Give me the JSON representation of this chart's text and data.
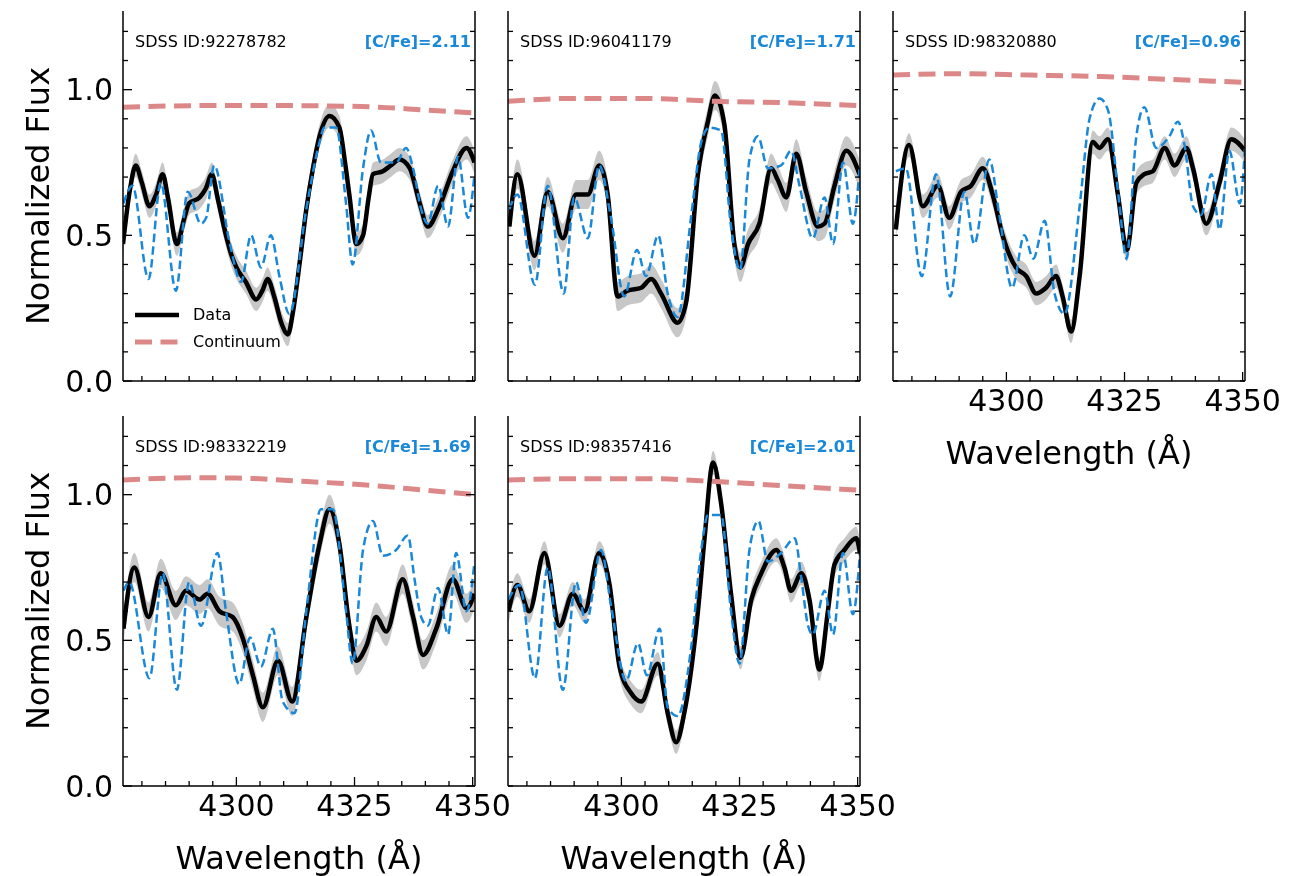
{
  "chart_data": [
    {
      "type": "line",
      "ylabel": "Normalized Flux",
      "annotations": [
        "SDSS ID:92278782",
        "[C/Fe]=2.11"
      ],
      "xlim": [
        4276,
        4350.5
      ],
      "ylim": [
        0,
        1.27
      ],
      "xticks": [
        {
          "value": 4280,
          "label": null
        },
        {
          "value": 4285,
          "label": null
        },
        {
          "value": 4290,
          "label": null
        },
        {
          "value": 4295,
          "label": null
        },
        {
          "value": 4300,
          "label": null
        },
        {
          "value": 4305,
          "label": null
        },
        {
          "value": 4310,
          "label": null
        },
        {
          "value": 4315,
          "label": null
        },
        {
          "value": 4320,
          "label": null
        },
        {
          "value": 4325,
          "label": null
        },
        {
          "value": 4330,
          "label": null
        },
        {
          "value": 4335,
          "label": null
        },
        {
          "value": 4340,
          "label": null
        },
        {
          "value": 4345,
          "label": null
        },
        {
          "value": 4350,
          "label": null
        }
      ],
      "yticks": [
        {
          "value": 0,
          "label": "0.0"
        },
        {
          "value": 0.1,
          "label": null
        },
        {
          "value": 0.2,
          "label": null
        },
        {
          "value": 0.3,
          "label": null
        },
        {
          "value": 0.4,
          "label": null
        },
        {
          "value": 0.5,
          "label": "0.5"
        },
        {
          "value": 0.6,
          "label": null
        },
        {
          "value": 0.7,
          "label": null
        },
        {
          "value": 0.8,
          "label": null
        },
        {
          "value": 0.9,
          "label": null
        },
        {
          "value": 1,
          "label": "1.0"
        },
        {
          "value": 1.1,
          "label": null
        },
        {
          "value": 1.2,
          "label": null
        }
      ],
      "tick_labels": "y",
      "legend": "bottom left",
      "series": [
        {
          "name": "Data",
          "color": "#000000",
          "line_style": "solid",
          "x": [
            4276,
            4277.5,
            4278.7,
            4280,
            4281.6,
            4283,
            4284.4,
            4285.5,
            4287.4,
            4289,
            4290,
            4292.2,
            4293.5,
            4294.8,
            4296,
            4297.8,
            4299,
            4300,
            4302,
            4304.2,
            4305.5,
            4306.6,
            4308,
            4309.5,
            4310.9,
            4312,
            4313.5,
            4314.8,
            4316.2,
            4317.6,
            4319.7,
            4321.8,
            4323,
            4323.9,
            4325.4,
            4326.8,
            4328,
            4328.9,
            4331,
            4332.7,
            4334.5,
            4336.7,
            4338.8,
            4340.5,
            4343,
            4345.8,
            4348.7,
            4350.4
          ],
          "values": [
            0.47,
            0.66,
            0.74,
            0.68,
            0.6,
            0.64,
            0.71,
            0.63,
            0.47,
            0.56,
            0.61,
            0.63,
            0.66,
            0.71,
            0.63,
            0.5,
            0.43,
            0.39,
            0.34,
            0.28,
            0.31,
            0.35,
            0.29,
            0.2,
            0.16,
            0.24,
            0.42,
            0.59,
            0.73,
            0.84,
            0.91,
            0.87,
            0.75,
            0.64,
            0.47,
            0.5,
            0.63,
            0.71,
            0.72,
            0.74,
            0.76,
            0.73,
            0.61,
            0.53,
            0.6,
            0.72,
            0.8,
            0.75
          ],
          "lower": [
            0.43,
            0.62,
            0.7,
            0.64,
            0.56,
            0.6,
            0.67,
            0.59,
            0.43,
            0.52,
            0.57,
            0.59,
            0.62,
            0.67,
            0.59,
            0.46,
            0.39,
            0.35,
            0.3,
            0.24,
            0.27,
            0.31,
            0.25,
            0.16,
            0.12,
            0.2,
            0.38,
            0.55,
            0.69,
            0.8,
            0.87,
            0.83,
            0.71,
            0.6,
            0.43,
            0.46,
            0.59,
            0.67,
            0.68,
            0.7,
            0.72,
            0.69,
            0.57,
            0.49,
            0.56,
            0.68,
            0.76,
            0.71
          ],
          "upper": [
            0.51,
            0.7,
            0.78,
            0.72,
            0.64,
            0.68,
            0.75,
            0.67,
            0.51,
            0.6,
            0.65,
            0.67,
            0.7,
            0.75,
            0.67,
            0.54,
            0.47,
            0.43,
            0.38,
            0.32,
            0.35,
            0.39,
            0.33,
            0.24,
            0.2,
            0.28,
            0.46,
            0.63,
            0.77,
            0.88,
            0.95,
            0.91,
            0.79,
            0.68,
            0.51,
            0.54,
            0.67,
            0.75,
            0.76,
            0.78,
            0.8,
            0.77,
            0.65,
            0.57,
            0.64,
            0.76,
            0.84,
            0.79
          ]
        },
        {
          "name": "Continuum",
          "color": "#dd8888",
          "line_style": "dashed",
          "x": [
            4276,
            4290,
            4300,
            4315,
            4330,
            4340,
            4350.5
          ],
          "values": [
            0.94,
            0.945,
            0.946,
            0.945,
            0.94,
            0.93,
            0.92
          ]
        },
        {
          "color": "#1a88d8",
          "line_style": "dashed",
          "x": [
            4276.1,
            4278,
            4281.4,
            4284,
            4287.2,
            4289.7,
            4292.5,
            4293.6,
            4295.3,
            4298.5,
            4301,
            4303.1,
            4305.2,
            4307.3,
            4309.1,
            4311.2,
            4314.8,
            4317.6,
            4318.6,
            4321.1,
            4323.2,
            4324.6,
            4326.8,
            4328.5,
            4330.6,
            4333.8,
            4335.9,
            4337.4,
            4339.1,
            4340.5,
            4342.7,
            4344.8,
            4346.9,
            4349,
            4350.4
          ],
          "values": [
            0.61,
            0.67,
            0.35,
            0.68,
            0.31,
            0.65,
            0.54,
            0.56,
            0.74,
            0.48,
            0.34,
            0.5,
            0.39,
            0.5,
            0.36,
            0.23,
            0.59,
            0.82,
            0.87,
            0.87,
            0.61,
            0.4,
            0.73,
            0.86,
            0.75,
            0.75,
            0.8,
            0.73,
            0.59,
            0.54,
            0.67,
            0.53,
            0.77,
            0.56,
            0.71
          ]
        }
      ]
    },
    {
      "type": "line",
      "annotations": [
        "SDSS ID:96041179",
        "[C/Fe]=1.71"
      ],
      "xlim": [
        4276,
        4350.5
      ],
      "ylim": [
        0,
        1.27
      ],
      "xticks": [
        {
          "value": 4280,
          "label": null
        },
        {
          "value": 4285,
          "label": null
        },
        {
          "value": 4290,
          "label": null
        },
        {
          "value": 4295,
          "label": null
        },
        {
          "value": 4300,
          "label": null
        },
        {
          "value": 4305,
          "label": null
        },
        {
          "value": 4310,
          "label": null
        },
        {
          "value": 4315,
          "label": null
        },
        {
          "value": 4320,
          "label": null
        },
        {
          "value": 4325,
          "label": null
        },
        {
          "value": 4330,
          "label": null
        },
        {
          "value": 4335,
          "label": null
        },
        {
          "value": 4340,
          "label": null
        },
        {
          "value": 4345,
          "label": null
        },
        {
          "value": 4350,
          "label": null
        }
      ],
      "yticks": [
        {
          "value": 0,
          "label": null
        },
        {
          "value": 0.1,
          "label": null
        },
        {
          "value": 0.2,
          "label": null
        },
        {
          "value": 0.3,
          "label": null
        },
        {
          "value": 0.4,
          "label": null
        },
        {
          "value": 0.5,
          "label": null
        },
        {
          "value": 0.6,
          "label": null
        },
        {
          "value": 0.7,
          "label": null
        },
        {
          "value": 0.8,
          "label": null
        },
        {
          "value": 0.9,
          "label": null
        },
        {
          "value": 1,
          "label": null
        },
        {
          "value": 1.1,
          "label": null
        },
        {
          "value": 1.2,
          "label": null
        }
      ],
      "tick_labels": false,
      "series": [
        {
          "color": "#000000",
          "line_style": "solid",
          "x": [
            4276.3,
            4278,
            4281.6,
            4284.4,
            4287.6,
            4290.4,
            4292.9,
            4295.3,
            4297.1,
            4299.2,
            4301.3,
            4304.2,
            4306.3,
            4308.4,
            4311.9,
            4313.7,
            4316.2,
            4318.3,
            4319.8,
            4321.8,
            4323.9,
            4325.2,
            4326.8,
            4329.2,
            4331.7,
            4333.1,
            4334.9,
            4337,
            4339.1,
            4341.6,
            4343,
            4345.1,
            4347.6,
            4350.4
          ],
          "values": [
            0.53,
            0.71,
            0.43,
            0.65,
            0.49,
            0.64,
            0.64,
            0.74,
            0.64,
            0.29,
            0.31,
            0.32,
            0.35,
            0.3,
            0.2,
            0.27,
            0.71,
            0.89,
            0.98,
            0.88,
            0.47,
            0.39,
            0.47,
            0.54,
            0.73,
            0.69,
            0.63,
            0.78,
            0.65,
            0.53,
            0.54,
            0.67,
            0.79,
            0.71
          ],
          "lower": [
            0.48,
            0.66,
            0.38,
            0.6,
            0.44,
            0.59,
            0.59,
            0.69,
            0.59,
            0.24,
            0.26,
            0.27,
            0.3,
            0.25,
            0.15,
            0.22,
            0.66,
            0.84,
            0.93,
            0.83,
            0.42,
            0.34,
            0.42,
            0.49,
            0.68,
            0.64,
            0.58,
            0.73,
            0.6,
            0.48,
            0.49,
            0.62,
            0.74,
            0.66
          ],
          "upper": [
            0.58,
            0.76,
            0.48,
            0.7,
            0.54,
            0.69,
            0.69,
            0.79,
            0.69,
            0.34,
            0.36,
            0.37,
            0.4,
            0.35,
            0.25,
            0.32,
            0.76,
            0.94,
            1.03,
            0.93,
            0.52,
            0.44,
            0.52,
            0.59,
            0.78,
            0.74,
            0.68,
            0.83,
            0.7,
            0.58,
            0.59,
            0.72,
            0.84,
            0.76
          ]
        },
        {
          "color": "#dd8888",
          "line_style": "dashed",
          "x": [
            4276,
            4290,
            4305,
            4320,
            4335,
            4350.5
          ],
          "values": [
            0.96,
            0.97,
            0.97,
            0.96,
            0.955,
            0.945
          ]
        },
        {
          "color": "#1a88d8",
          "line_style": "dashed",
          "x": [
            4276.3,
            4278,
            4281.7,
            4284.4,
            4287.8,
            4290,
            4292.9,
            4295.3,
            4297.8,
            4300.6,
            4303.3,
            4305.2,
            4307.8,
            4309.8,
            4311.9,
            4314.8,
            4316.9,
            4318.6,
            4321.1,
            4323.2,
            4325.1,
            4327.1,
            4328.9,
            4331,
            4333.8,
            4335.9,
            4337.7,
            4340.5,
            4343,
            4344.8,
            4346.9,
            4349,
            4350.4
          ],
          "values": [
            0.59,
            0.64,
            0.33,
            0.67,
            0.3,
            0.63,
            0.49,
            0.74,
            0.56,
            0.29,
            0.45,
            0.36,
            0.5,
            0.3,
            0.22,
            0.57,
            0.82,
            0.87,
            0.86,
            0.53,
            0.38,
            0.76,
            0.84,
            0.73,
            0.74,
            0.79,
            0.67,
            0.49,
            0.63,
            0.47,
            0.75,
            0.54,
            0.73
          ]
        }
      ]
    },
    {
      "type": "line",
      "xlabel": "Wavelength (Å)",
      "annotations": [
        "SDSS ID:98320880",
        "[C/Fe]=0.96"
      ],
      "xlim": [
        4276,
        4350.5
      ],
      "ylim": [
        0,
        1.27
      ],
      "xticks": [
        {
          "value": 4280,
          "label": null
        },
        {
          "value": 4285,
          "label": null
        },
        {
          "value": 4290,
          "label": null
        },
        {
          "value": 4295,
          "label": null
        },
        4300,
        {
          "value": 4305,
          "label": null
        },
        {
          "value": 4310,
          "label": null
        },
        {
          "value": 4315,
          "label": null
        },
        {
          "value": 4320,
          "label": null
        },
        4325,
        {
          "value": 4330,
          "label": null
        },
        {
          "value": 4335,
          "label": null
        },
        {
          "value": 4340,
          "label": null
        },
        {
          "value": 4345,
          "label": null
        },
        4350
      ],
      "yticks": [
        {
          "value": 0,
          "label": null
        },
        {
          "value": 0.1,
          "label": null
        },
        {
          "value": 0.2,
          "label": null
        },
        {
          "value": 0.3,
          "label": null
        },
        {
          "value": 0.4,
          "label": null
        },
        {
          "value": 0.5,
          "label": null
        },
        {
          "value": 0.6,
          "label": null
        },
        {
          "value": 0.7,
          "label": null
        },
        {
          "value": 0.8,
          "label": null
        },
        {
          "value": 0.9,
          "label": null
        },
        {
          "value": 1,
          "label": null
        },
        {
          "value": 1.1,
          "label": null
        },
        {
          "value": 1.2,
          "label": null
        }
      ],
      "tick_labels": "x",
      "series": [
        {
          "color": "#000000",
          "line_style": "solid",
          "x": [
            4276.6,
            4279.4,
            4282.3,
            4285.5,
            4287.9,
            4290.4,
            4292.5,
            4295,
            4297.1,
            4299.2,
            4302,
            4304.2,
            4306.3,
            4308.4,
            4310.5,
            4311.9,
            4313.7,
            4315.5,
            4318.3,
            4319.7,
            4321.5,
            4323.6,
            4325.5,
            4327.5,
            4329.2,
            4331,
            4333.5,
            4335.6,
            4338.1,
            4339.5,
            4342.3,
            4345.1,
            4347.6,
            4350.5
          ],
          "values": [
            0.52,
            0.81,
            0.6,
            0.67,
            0.56,
            0.65,
            0.67,
            0.73,
            0.64,
            0.5,
            0.39,
            0.36,
            0.3,
            0.32,
            0.36,
            0.29,
            0.17,
            0.36,
            0.82,
            0.8,
            0.83,
            0.64,
            0.45,
            0.68,
            0.71,
            0.72,
            0.8,
            0.74,
            0.8,
            0.73,
            0.54,
            0.68,
            0.83,
            0.79
          ],
          "lower": [
            0.48,
            0.77,
            0.56,
            0.63,
            0.52,
            0.61,
            0.63,
            0.69,
            0.6,
            0.46,
            0.35,
            0.32,
            0.26,
            0.28,
            0.32,
            0.25,
            0.13,
            0.32,
            0.78,
            0.76,
            0.79,
            0.6,
            0.41,
            0.64,
            0.67,
            0.68,
            0.76,
            0.7,
            0.76,
            0.69,
            0.5,
            0.64,
            0.79,
            0.75
          ],
          "upper": [
            0.56,
            0.85,
            0.64,
            0.71,
            0.6,
            0.69,
            0.71,
            0.77,
            0.68,
            0.54,
            0.43,
            0.4,
            0.34,
            0.36,
            0.4,
            0.33,
            0.21,
            0.4,
            0.86,
            0.84,
            0.87,
            0.68,
            0.49,
            0.72,
            0.75,
            0.76,
            0.84,
            0.78,
            0.84,
            0.77,
            0.58,
            0.72,
            0.87,
            0.83
          ]
        },
        {
          "color": "#dd8888",
          "line_style": "dashed",
          "x": [
            4276,
            4290,
            4305,
            4320,
            4335,
            4350.5
          ],
          "values": [
            1.05,
            1.055,
            1.05,
            1.045,
            1.035,
            1.025
          ]
        },
        {
          "color": "#1a88d8",
          "line_style": "dashed",
          "x": [
            4276.6,
            4278.7,
            4282.1,
            4285.1,
            4288.1,
            4291.1,
            4293.2,
            4296.4,
            4298.5,
            4301.2,
            4303.8,
            4305.7,
            4308.1,
            4310.2,
            4312.3,
            4315.5,
            4317.6,
            4319.7,
            4321.5,
            4323.9,
            4325.4,
            4327.5,
            4329.2,
            4331.7,
            4334.5,
            4336.3,
            4337.7,
            4339.5,
            4341.2,
            4343.4,
            4345.1,
            4347.2,
            4349.4,
            4350.5
          ],
          "values": [
            0.72,
            0.73,
            0.36,
            0.71,
            0.29,
            0.65,
            0.47,
            0.76,
            0.57,
            0.32,
            0.5,
            0.42,
            0.55,
            0.3,
            0.23,
            0.6,
            0.9,
            0.97,
            0.93,
            0.61,
            0.42,
            0.84,
            0.94,
            0.8,
            0.84,
            0.89,
            0.81,
            0.6,
            0.57,
            0.71,
            0.52,
            0.79,
            0.61,
            0.8
          ]
        }
      ]
    },
    {
      "type": "line",
      "xlabel": "Wavelength (Å)",
      "ylabel": "Normalized Flux",
      "annotations": [
        "SDSS ID:98332219",
        "[C/Fe]=1.69"
      ],
      "xlim": [
        4276,
        4350.5
      ],
      "ylim": [
        0,
        1.27
      ],
      "xticks": [
        {
          "value": 4280,
          "label": null
        },
        {
          "value": 4285,
          "label": null
        },
        {
          "value": 4290,
          "label": null
        },
        {
          "value": 4295,
          "label": null
        },
        4300,
        {
          "value": 4305,
          "label": null
        },
        {
          "value": 4310,
          "label": null
        },
        {
          "value": 4315,
          "label": null
        },
        {
          "value": 4320,
          "label": null
        },
        4325,
        {
          "value": 4330,
          "label": null
        },
        {
          "value": 4335,
          "label": null
        },
        {
          "value": 4340,
          "label": null
        },
        {
          "value": 4345,
          "label": null
        },
        4350
      ],
      "yticks": [
        {
          "value": 0,
          "label": "0.0"
        },
        {
          "value": 0.1,
          "label": null
        },
        {
          "value": 0.2,
          "label": null
        },
        {
          "value": 0.3,
          "label": null
        },
        {
          "value": 0.4,
          "label": null
        },
        {
          "value": 0.5,
          "label": "0.5"
        },
        {
          "value": 0.6,
          "label": null
        },
        {
          "value": 0.7,
          "label": null
        },
        {
          "value": 0.8,
          "label": null
        },
        {
          "value": 0.9,
          "label": null
        },
        {
          "value": 1,
          "label": "1.0"
        },
        {
          "value": 1.1,
          "label": null
        },
        {
          "value": 1.2,
          "label": null
        }
      ],
      "series": [
        {
          "color": "#000000",
          "line_style": "solid",
          "x": [
            4276.1,
            4278.4,
            4281.4,
            4284,
            4287.2,
            4289.3,
            4292.2,
            4293.9,
            4296.4,
            4299.2,
            4301.3,
            4303.5,
            4305.6,
            4308.8,
            4311.8,
            4314.8,
            4317.6,
            4319.7,
            4321.8,
            4323.9,
            4325.4,
            4327.5,
            4329.6,
            4331.7,
            4335.2,
            4337.4,
            4339.5,
            4342.3,
            4345.8,
            4348.7,
            4350.4
          ],
          "values": [
            0.54,
            0.75,
            0.58,
            0.73,
            0.62,
            0.67,
            0.64,
            0.66,
            0.6,
            0.58,
            0.51,
            0.38,
            0.27,
            0.43,
            0.29,
            0.58,
            0.83,
            0.95,
            0.83,
            0.55,
            0.43,
            0.48,
            0.58,
            0.53,
            0.71,
            0.58,
            0.45,
            0.54,
            0.71,
            0.61,
            0.66
          ],
          "lower": [
            0.49,
            0.7,
            0.53,
            0.68,
            0.57,
            0.62,
            0.59,
            0.61,
            0.55,
            0.53,
            0.46,
            0.33,
            0.22,
            0.38,
            0.24,
            0.53,
            0.78,
            0.9,
            0.78,
            0.5,
            0.38,
            0.43,
            0.53,
            0.48,
            0.66,
            0.53,
            0.4,
            0.49,
            0.66,
            0.56,
            0.61
          ],
          "upper": [
            0.59,
            0.8,
            0.63,
            0.78,
            0.67,
            0.72,
            0.69,
            0.71,
            0.65,
            0.63,
            0.56,
            0.43,
            0.32,
            0.48,
            0.34,
            0.63,
            0.88,
            1.0,
            0.88,
            0.6,
            0.48,
            0.53,
            0.63,
            0.58,
            0.76,
            0.63,
            0.5,
            0.59,
            0.76,
            0.66,
            0.71
          ]
        },
        {
          "color": "#dd8888",
          "line_style": "dashed",
          "x": [
            4276,
            4290,
            4300,
            4315,
            4330,
            4340,
            4350.5
          ],
          "values": [
            1.05,
            1.058,
            1.057,
            1.045,
            1.03,
            1.015,
            1.0
          ]
        },
        {
          "color": "#1a88d8",
          "line_style": "dashed",
          "x": [
            4276.1,
            4277.3,
            4281.6,
            4284.4,
            4287.4,
            4290,
            4292.5,
            4296,
            4297.8,
            4300.6,
            4302.9,
            4305.2,
            4307.7,
            4309.8,
            4312.3,
            4314.8,
            4317.9,
            4320.4,
            4323.2,
            4324.6,
            4326.8,
            4328.9,
            4331,
            4333.8,
            4336.3,
            4337.7,
            4339.1,
            4340.5,
            4342.7,
            4344.8,
            4346.5,
            4348.7,
            4350.4
          ],
          "values": [
            0.67,
            0.7,
            0.37,
            0.73,
            0.33,
            0.7,
            0.55,
            0.8,
            0.6,
            0.35,
            0.51,
            0.41,
            0.54,
            0.29,
            0.25,
            0.6,
            0.95,
            0.95,
            0.6,
            0.42,
            0.81,
            0.91,
            0.79,
            0.81,
            0.86,
            0.71,
            0.58,
            0.55,
            0.68,
            0.52,
            0.8,
            0.6,
            0.77
          ]
        }
      ]
    },
    {
      "type": "line",
      "xlabel": "Wavelength (Å)",
      "annotations": [
        "SDSS ID:98357416",
        "[C/Fe]=2.01"
      ],
      "xlim": [
        4276,
        4350.5
      ],
      "ylim": [
        0,
        1.27
      ],
      "xticks": [
        {
          "value": 4280,
          "label": null
        },
        {
          "value": 4285,
          "label": null
        },
        {
          "value": 4290,
          "label": null
        },
        {
          "value": 4295,
          "label": null
        },
        4300,
        {
          "value": 4305,
          "label": null
        },
        {
          "value": 4310,
          "label": null
        },
        {
          "value": 4315,
          "label": null
        },
        {
          "value": 4320,
          "label": null
        },
        4325,
        {
          "value": 4330,
          "label": null
        },
        {
          "value": 4335,
          "label": null
        },
        {
          "value": 4340,
          "label": null
        },
        {
          "value": 4345,
          "label": null
        },
        4350
      ],
      "yticks": [
        {
          "value": 0,
          "label": null
        },
        {
          "value": 0.1,
          "label": null
        },
        {
          "value": 0.2,
          "label": null
        },
        {
          "value": 0.3,
          "label": null
        },
        {
          "value": 0.4,
          "label": null
        },
        {
          "value": 0.5,
          "label": null
        },
        {
          "value": 0.6,
          "label": null
        },
        {
          "value": 0.7,
          "label": null
        },
        {
          "value": 0.8,
          "label": null
        },
        {
          "value": 0.9,
          "label": null
        },
        {
          "value": 1,
          "label": null
        },
        {
          "value": 1.1,
          "label": null
        },
        {
          "value": 1.2,
          "label": null
        }
      ],
      "tick_labels": "x",
      "series": [
        {
          "color": "#000000",
          "line_style": "solid",
          "x": [
            4276.1,
            4278,
            4280.5,
            4283.7,
            4286.9,
            4289.7,
            4292.2,
            4295.3,
            4297.5,
            4299.6,
            4302,
            4304.2,
            4307.7,
            4309.8,
            4311.6,
            4313.3,
            4316.2,
            4317.6,
            4319.4,
            4321.1,
            4323.2,
            4325.2,
            4327.5,
            4329.6,
            4332.8,
            4334.5,
            4335.9,
            4338.1,
            4339.8,
            4341.9,
            4343.7,
            4345.1,
            4347.2,
            4349.7,
            4350.5
          ],
          "values": [
            0.6,
            0.69,
            0.6,
            0.8,
            0.55,
            0.66,
            0.6,
            0.8,
            0.69,
            0.41,
            0.32,
            0.29,
            0.42,
            0.25,
            0.15,
            0.25,
            0.6,
            0.85,
            1.11,
            0.97,
            0.66,
            0.44,
            0.64,
            0.73,
            0.81,
            0.75,
            0.67,
            0.73,
            0.64,
            0.4,
            0.6,
            0.76,
            0.81,
            0.85,
            0.8
          ],
          "lower": [
            0.56,
            0.65,
            0.56,
            0.76,
            0.51,
            0.62,
            0.56,
            0.76,
            0.65,
            0.37,
            0.28,
            0.25,
            0.38,
            0.21,
            0.11,
            0.21,
            0.56,
            0.81,
            1.07,
            0.93,
            0.62,
            0.4,
            0.6,
            0.69,
            0.77,
            0.71,
            0.63,
            0.69,
            0.6,
            0.36,
            0.56,
            0.72,
            0.77,
            0.81,
            0.76
          ],
          "upper": [
            0.64,
            0.73,
            0.64,
            0.84,
            0.59,
            0.7,
            0.64,
            0.84,
            0.73,
            0.45,
            0.36,
            0.33,
            0.46,
            0.29,
            0.19,
            0.29,
            0.64,
            0.89,
            1.15,
            1.01,
            0.7,
            0.48,
            0.68,
            0.77,
            0.85,
            0.79,
            0.71,
            0.77,
            0.68,
            0.44,
            0.64,
            0.8,
            0.85,
            0.89,
            0.84
          ]
        },
        {
          "color": "#dd8888",
          "line_style": "dashed",
          "x": [
            4276,
            4290,
            4305,
            4320,
            4335,
            4350.5
          ],
          "values": [
            1.05,
            1.055,
            1.055,
            1.045,
            1.03,
            1.015
          ]
        },
        {
          "color": "#1a88d8",
          "line_style": "dashed",
          "x": [
            4276.1,
            4278.4,
            4281.7,
            4284.4,
            4287.6,
            4290.4,
            4292.5,
            4295.7,
            4297.8,
            4301,
            4303.5,
            4305.4,
            4308.1,
            4309.8,
            4311.9,
            4314.8,
            4316.9,
            4318.3,
            4321.1,
            4323.2,
            4325,
            4327.1,
            4329,
            4331,
            4333.8,
            4336.7,
            4338.1,
            4339.5,
            4340.5,
            4343,
            4344.8,
            4346.9,
            4349,
            4350.5
          ],
          "values": [
            0.64,
            0.69,
            0.37,
            0.75,
            0.33,
            0.7,
            0.56,
            0.81,
            0.62,
            0.36,
            0.49,
            0.38,
            0.54,
            0.27,
            0.24,
            0.48,
            0.81,
            0.93,
            0.93,
            0.6,
            0.42,
            0.81,
            0.91,
            0.77,
            0.8,
            0.85,
            0.71,
            0.55,
            0.52,
            0.67,
            0.52,
            0.8,
            0.59,
            0.8
          ]
        }
      ]
    }
  ]
}
